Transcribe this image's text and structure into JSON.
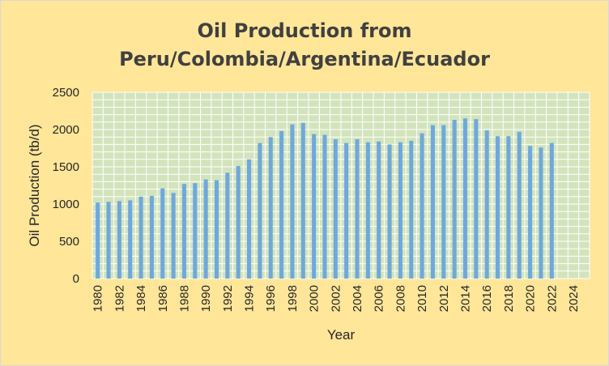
{
  "chart_data": {
    "type": "bar",
    "title": [
      "Oil Production from",
      "Peru/Colombia/Argentina/Ecuador"
    ],
    "xlabel": "Year",
    "ylabel": "Oil Production (tb/d)",
    "ylim": [
      0,
      2500
    ],
    "yticks": [
      0,
      500,
      1000,
      1500,
      2000,
      2500
    ],
    "xticks": [
      1980,
      1982,
      1984,
      1986,
      1988,
      1990,
      1992,
      1994,
      1996,
      1998,
      2000,
      2002,
      2004,
      2006,
      2008,
      2010,
      2012,
      2014,
      2016,
      2018,
      2020,
      2022,
      2024
    ],
    "xlim": [
      1980,
      2025
    ],
    "grid": true,
    "legend": "none",
    "plot_background": "#D3E4BD",
    "background": "#FFE699",
    "bar_color": "#6FA8DC",
    "categories": [
      1980,
      1981,
      1982,
      1983,
      1984,
      1985,
      1986,
      1987,
      1988,
      1989,
      1990,
      1991,
      1992,
      1993,
      1994,
      1995,
      1996,
      1997,
      1998,
      1999,
      2000,
      2001,
      2002,
      2003,
      2004,
      2005,
      2006,
      2007,
      2008,
      2009,
      2010,
      2011,
      2012,
      2013,
      2014,
      2015,
      2016,
      2017,
      2018,
      2019,
      2020,
      2021,
      2022
    ],
    "values": [
      1020,
      1030,
      1040,
      1050,
      1100,
      1110,
      1210,
      1150,
      1270,
      1280,
      1330,
      1320,
      1420,
      1510,
      1600,
      1820,
      1900,
      1980,
      2070,
      2090,
      1940,
      1930,
      1870,
      1820,
      1870,
      1830,
      1840,
      1800,
      1830,
      1850,
      1950,
      2060,
      2060,
      2130,
      2150,
      2140,
      1990,
      1910,
      1910,
      1970,
      1780,
      1760,
      1820
    ]
  }
}
